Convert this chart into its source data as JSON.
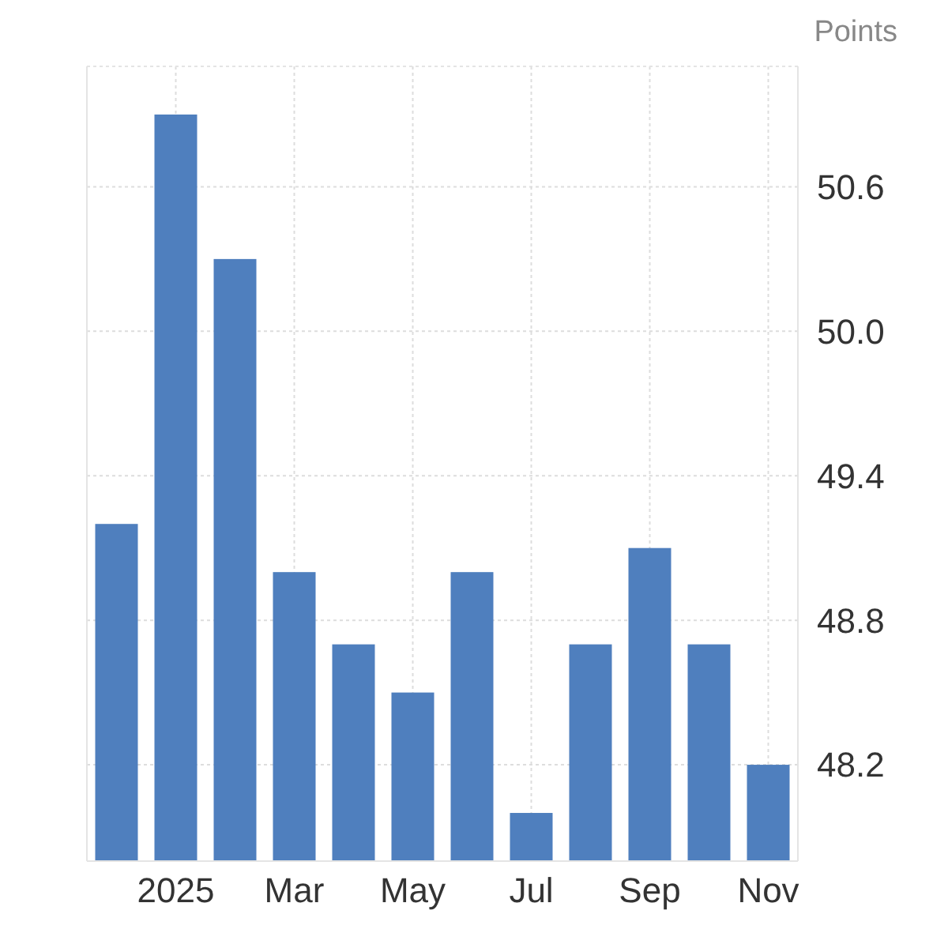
{
  "chart_data": {
    "type": "bar",
    "ylabel": "Points",
    "categories": [
      null,
      "2025",
      null,
      "Mar",
      null,
      "May",
      null,
      "Jul",
      null,
      "Sep",
      null,
      "Nov"
    ],
    "values": [
      49.2,
      50.9,
      50.3,
      49.0,
      48.7,
      48.5,
      49.0,
      48.0,
      48.7,
      49.1,
      48.7,
      48.2
    ],
    "color": "#4f7fbe",
    "ylim": [
      47.8,
      51.1
    ],
    "yticks": [
      {
        "value": 48.2,
        "label": "48.2"
      },
      {
        "value": 48.8,
        "label": "48.8"
      },
      {
        "value": 49.4,
        "label": "49.4"
      },
      {
        "value": 50.0,
        "label": "50.0"
      },
      {
        "value": 50.6,
        "label": "50.6"
      }
    ],
    "grid": true
  }
}
